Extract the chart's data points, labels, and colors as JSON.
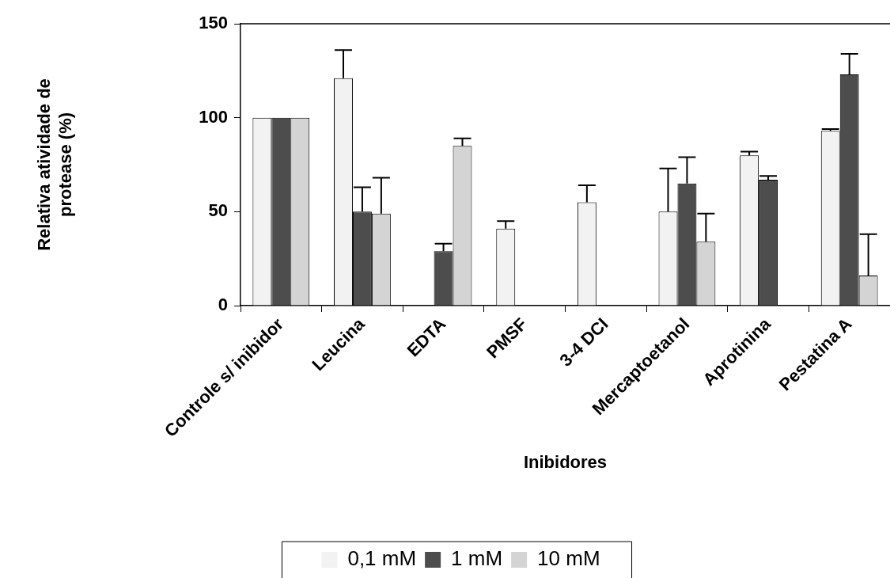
{
  "chart_data": {
    "type": "bar",
    "xlabel": "Inibidores",
    "ylabel": "Relativa atividade de protease (%)",
    "categories": [
      "Controle s/ inibidor",
      "Leucina",
      "EDTA",
      "PMSF",
      "3-4 DCI",
      "Mercaptoetanol",
      "Aprotinina",
      "Pestatina A"
    ],
    "series": [
      {
        "name": "0,1 mM",
        "color": "#f2f2f2",
        "values": [
          100,
          121,
          0,
          41,
          55,
          50,
          80,
          93
        ],
        "errors": [
          null,
          [
            121,
            136
          ],
          null,
          [
            41,
            45
          ],
          [
            55,
            64
          ],
          [
            50,
            73
          ],
          [
            80,
            82
          ],
          [
            93,
            94
          ]
        ]
      },
      {
        "name": "1 mM",
        "color": "#4d4d4d",
        "values": [
          100,
          50,
          29,
          0,
          0,
          65,
          67,
          123
        ],
        "errors": [
          null,
          [
            50,
            63
          ],
          [
            29,
            33
          ],
          null,
          null,
          [
            65,
            79
          ],
          [
            67,
            69
          ],
          [
            123,
            134
          ]
        ]
      },
      {
        "name": "10 mM",
        "color": "#d4d4d4",
        "values": [
          100,
          49,
          85,
          0,
          0,
          34,
          0,
          16
        ],
        "errors": [
          null,
          [
            49,
            68
          ],
          [
            85,
            89
          ],
          null,
          null,
          [
            34,
            49
          ],
          null,
          [
            16,
            38
          ]
        ]
      }
    ],
    "ylim": [
      0,
      150
    ],
    "yticks": [
      0,
      50,
      100,
      150
    ],
    "legend": "bottom"
  }
}
